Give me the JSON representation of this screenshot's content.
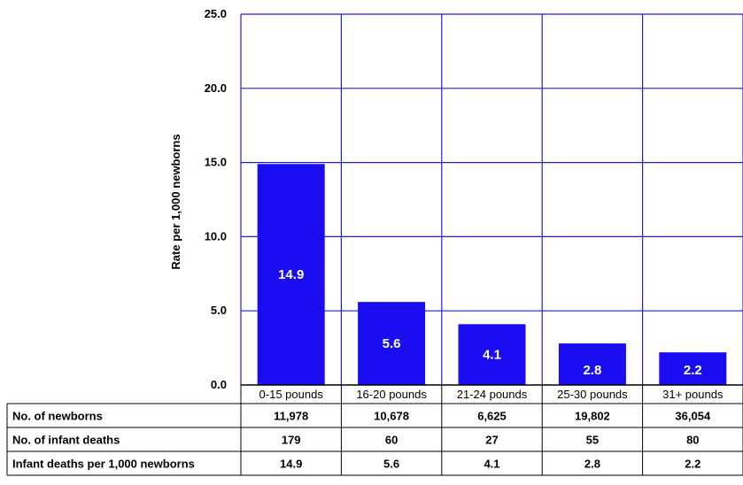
{
  "chart_data": {
    "type": "bar",
    "ylabel": "Rate per 1,000 newborns",
    "xlabel": "",
    "ylim": [
      0,
      25
    ],
    "yticks": [
      "0.0",
      "5.0",
      "10.0",
      "15.0",
      "20.0",
      "25.0"
    ],
    "grid": true,
    "categories": [
      "0-15 pounds",
      "16-20 pounds",
      "21-24 pounds",
      "25-30 pounds",
      "31+ pounds"
    ],
    "values": [
      14.9,
      5.6,
      4.1,
      2.8,
      2.2
    ],
    "data_labels": [
      "14.9",
      "5.6",
      "4.1",
      "2.8",
      "2.2"
    ],
    "bar_color": "#1a0df2",
    "grid_color": "#1f1fd6",
    "table": {
      "rows": [
        {
          "label": "No. of newborns",
          "values": [
            "11,978",
            "10,678",
            "6,625",
            "19,802",
            "36,054"
          ]
        },
        {
          "label": "No. of infant deaths",
          "values": [
            "179",
            "60",
            "27",
            "55",
            "80"
          ]
        },
        {
          "label": "Infant deaths  per 1,000 newborns",
          "values": [
            "14.9",
            "5.6",
            "4.1",
            "2.8",
            "2.2"
          ]
        }
      ]
    }
  }
}
